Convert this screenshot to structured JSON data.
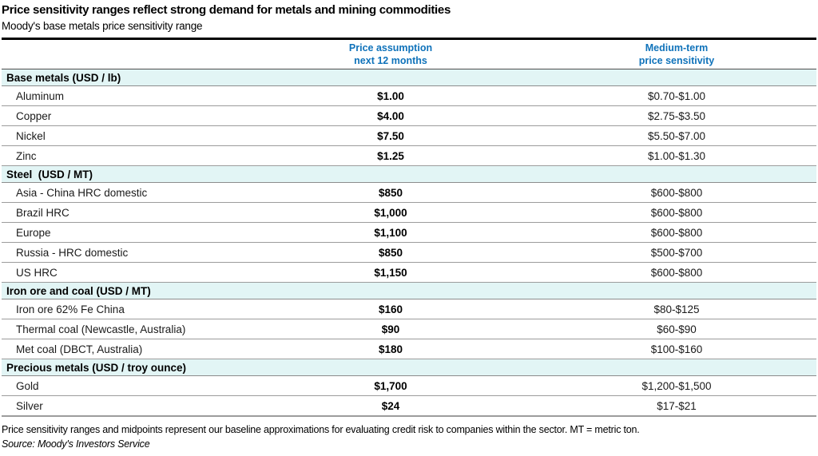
{
  "header": {
    "title": "Price sensitivity ranges reflect strong demand for metals and mining commodities",
    "subtitle": "Moody's base metals price sensitivity range"
  },
  "table": {
    "columns": [
      {
        "line1": "Price assumption",
        "line2": "next 12 months"
      },
      {
        "line1": "Medium-term",
        "line2": "price sensitivity"
      }
    ],
    "sections": [
      {
        "label": "Base metals (USD / lb)",
        "rows": [
          {
            "name": "Aluminum",
            "assumption": "$1.00",
            "sensitivity": "$0.70-$1.00"
          },
          {
            "name": "Copper",
            "assumption": "$4.00",
            "sensitivity": "$2.75-$3.50"
          },
          {
            "name": "Nickel",
            "assumption": "$7.50",
            "sensitivity": "$5.50-$7.00"
          },
          {
            "name": "Zinc",
            "assumption": "$1.25",
            "sensitivity": "$1.00-$1.30"
          }
        ]
      },
      {
        "label": "Steel  (USD / MT)",
        "rows": [
          {
            "name": "Asia - China HRC domestic",
            "assumption": "$850",
            "sensitivity": "$600-$800"
          },
          {
            "name": "Brazil HRC",
            "assumption": "$1,000",
            "sensitivity": "$600-$800"
          },
          {
            "name": "Europe",
            "assumption": "$1,100",
            "sensitivity": "$600-$800"
          },
          {
            "name": "Russia - HRC domestic",
            "assumption": "$850",
            "sensitivity": "$500-$700"
          },
          {
            "name": "US HRC",
            "assumption": "$1,150",
            "sensitivity": "$600-$800"
          }
        ]
      },
      {
        "label": "Iron ore and coal (USD / MT)",
        "rows": [
          {
            "name": "Iron ore 62% Fe China",
            "assumption": "$160",
            "sensitivity": "$80-$125"
          },
          {
            "name": "Thermal coal (Newcastle, Australia)",
            "assumption": "$90",
            "sensitivity": "$60-$90"
          },
          {
            "name": "Met coal (DBCT, Australia)",
            "assumption": "$180",
            "sensitivity": "$100-$160"
          }
        ]
      },
      {
        "label": "Precious metals (USD / troy ounce)",
        "rows": [
          {
            "name": "Gold",
            "assumption": "$1,700",
            "sensitivity": "$1,200-$1,500"
          },
          {
            "name": "Silver",
            "assumption": "$24",
            "sensitivity": "$17-$21"
          }
        ]
      }
    ]
  },
  "footer": {
    "note": "Price sensitivity ranges and midpoints represent our baseline approximations for evaluating credit risk to companies within the sector. MT = metric ton.",
    "source": "Source: Moody's Investors Service"
  },
  "colors": {
    "accent_blue": "#0f72ba",
    "section_band": "#e2f5f5",
    "separator_grey": "#9c9c9c",
    "heavy_rule": "#000000"
  }
}
